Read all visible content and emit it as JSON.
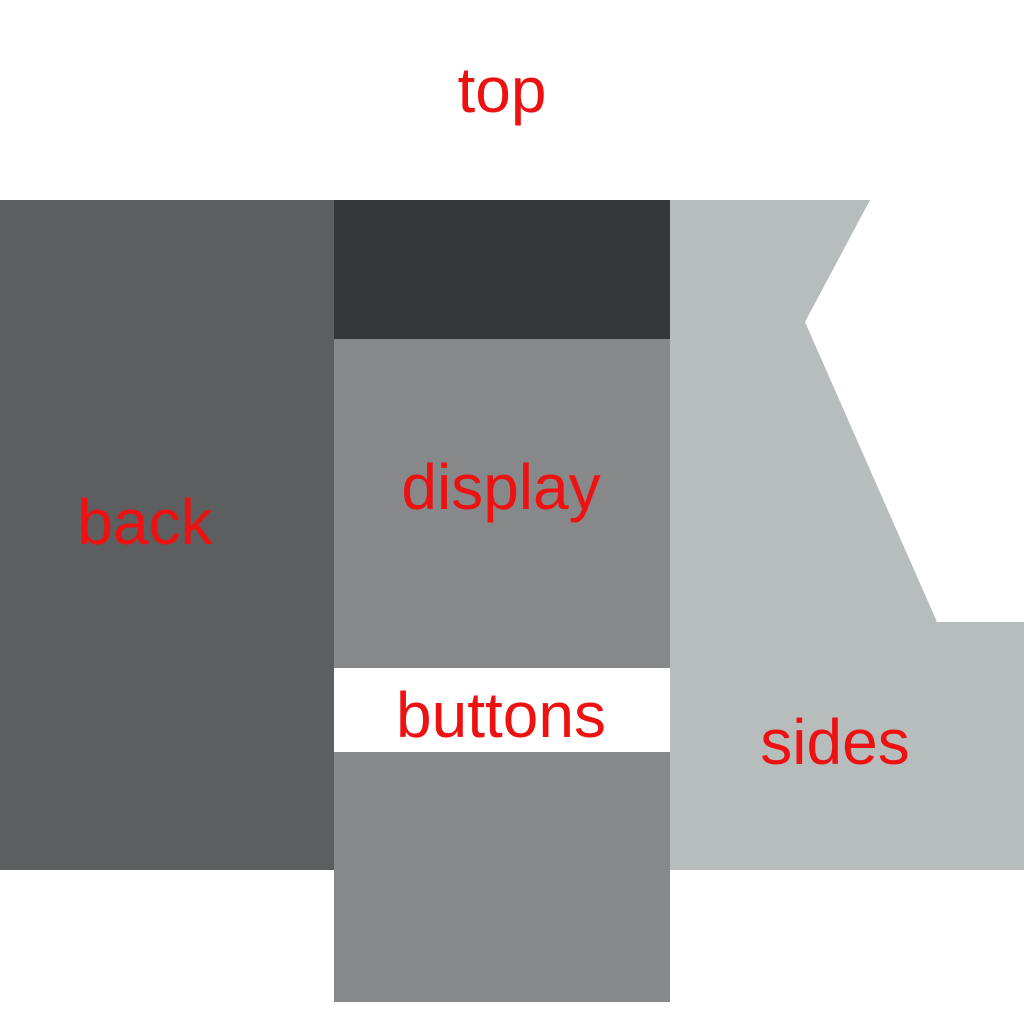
{
  "labels": {
    "top": "top",
    "back": "back",
    "display": "display",
    "buttons": "buttons",
    "sides": "sides"
  },
  "colors": {
    "background": "#ffffff",
    "label_text": "#ee1111",
    "back": "#5d5e60",
    "display_top": "#353638",
    "display": "#87888a",
    "buttons": "#ffffff",
    "lower": "#87888a",
    "sides": "#b7bcbc"
  }
}
